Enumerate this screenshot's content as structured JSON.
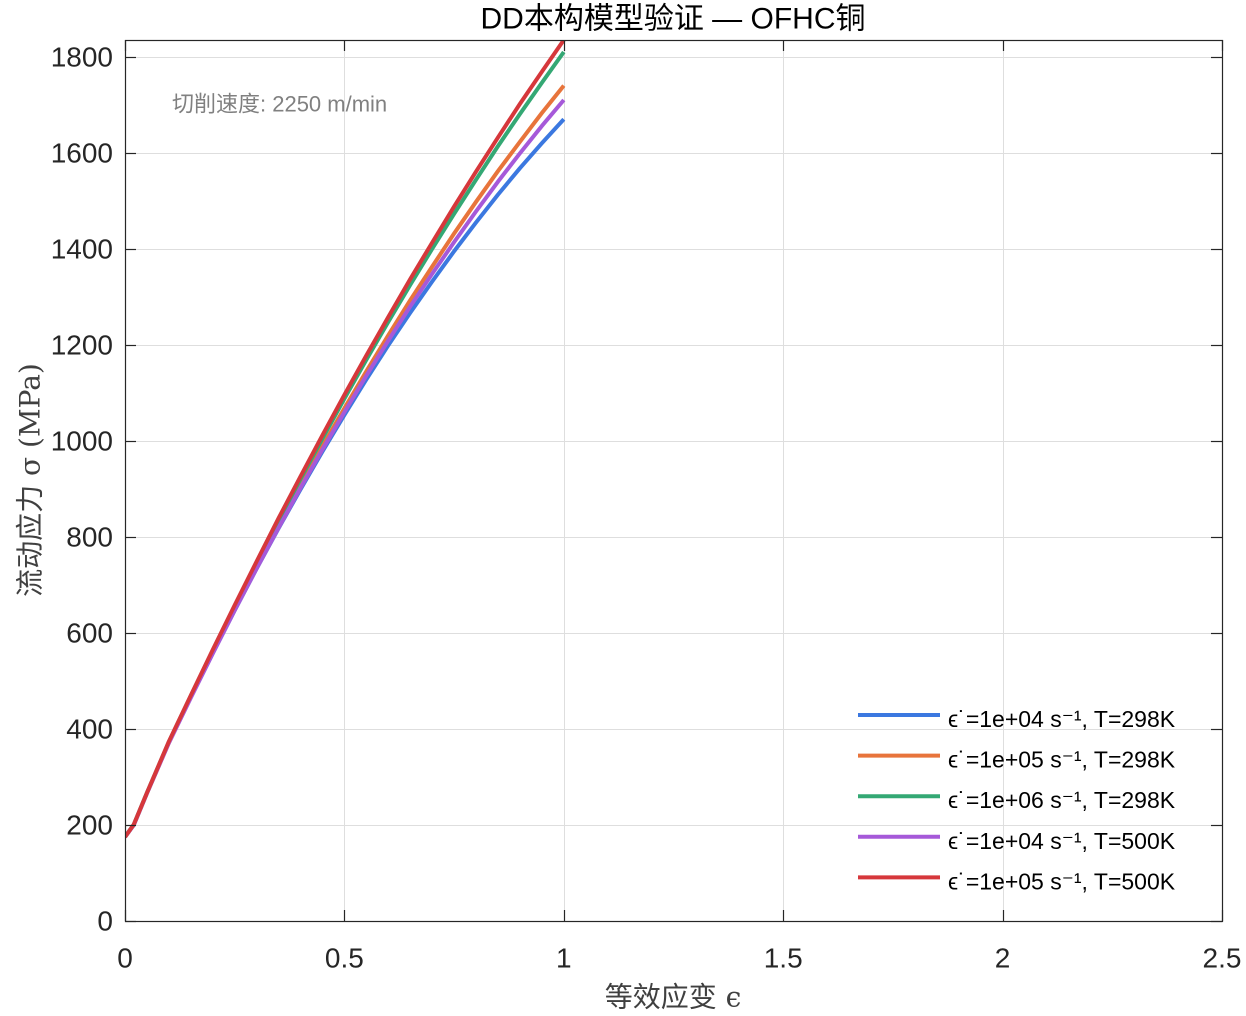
{
  "chart_data": {
    "type": "line",
    "title": "DD本构模型验证 — OFHC铜",
    "xlabel": "等效应变 ϵ",
    "ylabel": "流动应力 σ (MPa)",
    "annotation": "切削速度: 2250 m/min",
    "xlim": [
      0,
      2.5
    ],
    "ylim": [
      0,
      1835
    ],
    "xticks": [
      0,
      0.5,
      1,
      1.5,
      2,
      2.5
    ],
    "xtick_labels": [
      "0",
      "0.5",
      "1",
      "1.5",
      "2",
      "2.5"
    ],
    "yticks": [
      0,
      200,
      400,
      600,
      800,
      1000,
      1200,
      1400,
      1600,
      1800
    ],
    "ytick_labels": [
      "0",
      "200",
      "400",
      "600",
      "800",
      "1000",
      "1200",
      "1400",
      "1600",
      "1800"
    ],
    "grid": true,
    "box": true,
    "legend_position": "bottom-right",
    "x": [
      0,
      0.02,
      0.05,
      0.1,
      0.15,
      0.2,
      0.25,
      0.3,
      0.35,
      0.4,
      0.45,
      0.5,
      0.55,
      0.6,
      0.65,
      0.7,
      0.75,
      0.8,
      0.85,
      0.9,
      0.95,
      1.0
    ],
    "series": [
      {
        "name": "ϵ˙=1e+04 s⁻¹, T=298K",
        "color": "#3b78e0",
        "values": [
          175,
          200,
          266,
          372,
          466,
          558,
          647,
          734,
          818,
          899,
          978,
          1054,
          1128,
          1199,
          1267,
          1332,
          1395,
          1455,
          1513,
          1568,
          1620,
          1670
        ]
      },
      {
        "name": "ϵ˙=1e+05 s⁻¹, T=298K",
        "color": "#e8743b",
        "values": [
          175,
          200,
          266,
          371,
          466,
          559,
          649,
          737,
          823,
          907,
          989,
          1068,
          1145,
          1220,
          1293,
          1363,
          1432,
          1498,
          1562,
          1623,
          1683,
          1740
        ]
      },
      {
        "name": "ϵ˙=1e+06 s⁻¹, T=298K",
        "color": "#34a874",
        "values": [
          175,
          201,
          267,
          373,
          469,
          563,
          655,
          746,
          834,
          921,
          1005,
          1088,
          1169,
          1248,
          1325,
          1400,
          1473,
          1544,
          1614,
          1681,
          1746,
          1810
        ]
      },
      {
        "name": "ϵ˙=1e+04 s⁻¹, T=500K",
        "color": "#a659d9",
        "values": [
          175,
          200,
          266,
          371,
          465,
          557,
          647,
          734,
          819,
          902,
          982,
          1060,
          1136,
          1209,
          1280,
          1348,
          1414,
          1478,
          1540,
          1599,
          1656,
          1710
        ]
      },
      {
        "name": "ϵ˙=1e+05 s⁻¹, T=500K",
        "color": "#d6373b",
        "values": [
          175,
          201,
          267,
          374,
          470,
          565,
          658,
          749,
          839,
          926,
          1012,
          1096,
          1178,
          1258,
          1337,
          1413,
          1488,
          1561,
          1632,
          1702,
          1769,
          1835
        ]
      }
    ]
  }
}
